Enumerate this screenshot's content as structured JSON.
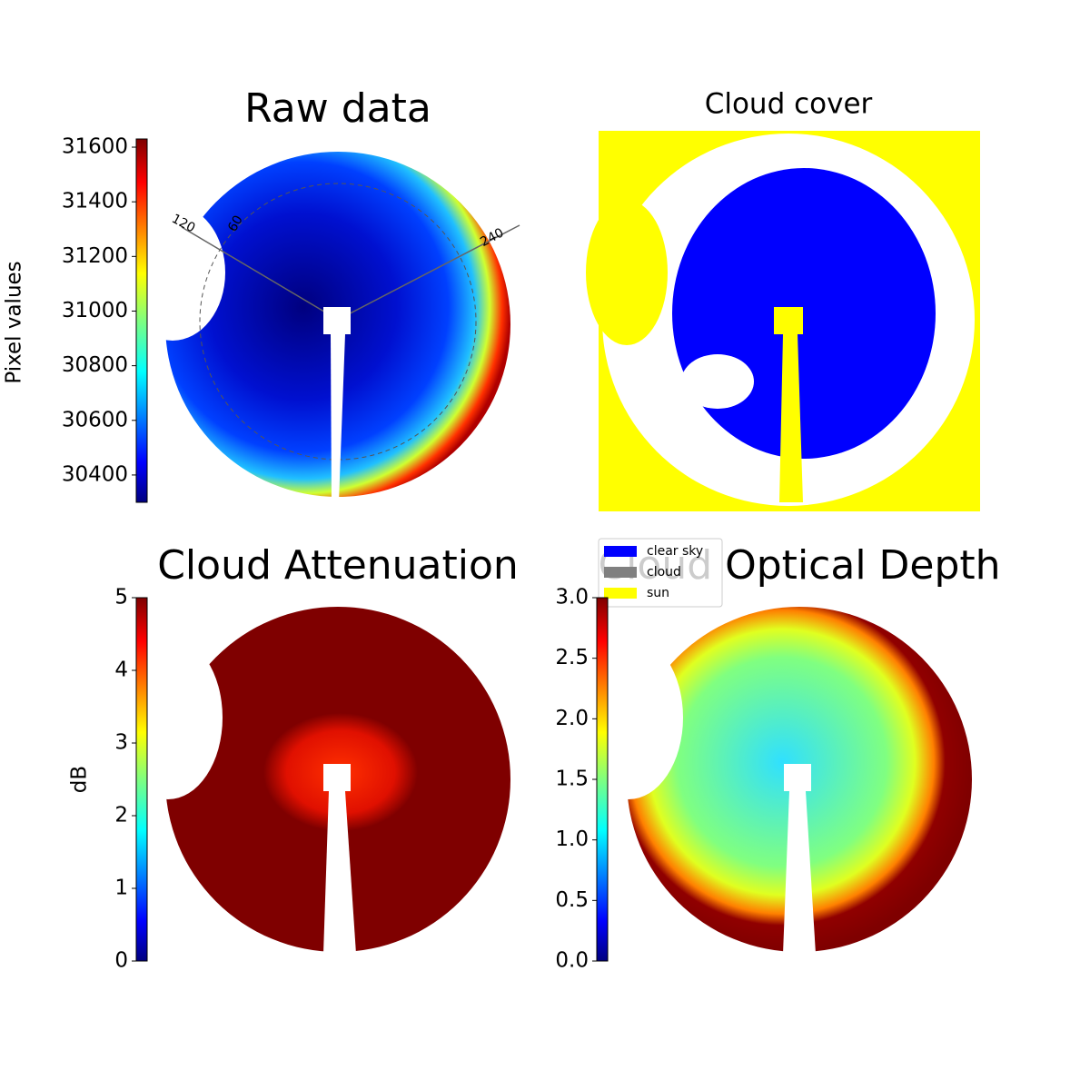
{
  "chart_data": [
    {
      "type": "image",
      "title": "Raw data",
      "ylabel": "Pixel values",
      "colormap": "jet",
      "ylim": [
        30300,
        31630
      ],
      "yticks": [
        30400,
        30600,
        30800,
        31000,
        31200,
        31400,
        31600
      ],
      "annotations": [
        "120",
        "60",
        "240"
      ]
    },
    {
      "type": "image",
      "title": "Cloud cover",
      "legend": [
        {
          "name": "clear sky",
          "color": "#0000ff"
        },
        {
          "name": "cloud",
          "color": "#808080"
        },
        {
          "name": "sun",
          "color": "#ffff00"
        }
      ]
    },
    {
      "type": "image",
      "title": "Cloud Attenuation",
      "ylabel": "dB",
      "colormap": "jet",
      "ylim": [
        0,
        5
      ],
      "yticks": [
        0,
        1,
        2,
        3,
        4,
        5
      ]
    },
    {
      "type": "image",
      "title": "Cloud Optical Depth",
      "colormap": "jet",
      "ylim": [
        0,
        3
      ],
      "yticks": [
        {
          "value": 0,
          "label": "0.0"
        },
        0.5,
        {
          "value": 1,
          "label": "1.0"
        },
        1.5,
        {
          "value": 2,
          "label": "2.0"
        },
        2.5,
        {
          "value": 3,
          "label": "3.0"
        }
      ]
    }
  ]
}
